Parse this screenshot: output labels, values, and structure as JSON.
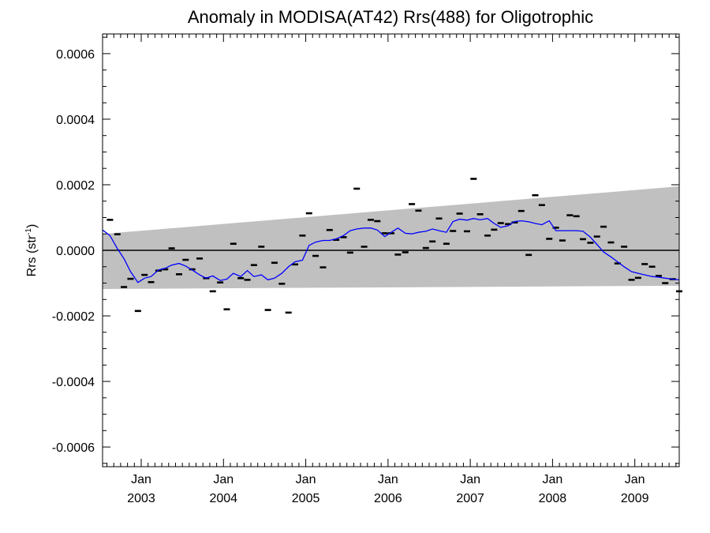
{
  "chart_data": {
    "type": "scatter",
    "title": "Anomaly in MODISA(AT42) Rrs(488) for Oligotrophic",
    "ylabel": "Rrs (str",
    "ylabel_sup": "-1",
    "ylabel_close": ")",
    "xlabel": "",
    "xlim": [
      2002.53,
      2009.54
    ],
    "ylim": [
      -0.00066,
      0.00066
    ],
    "grid": false,
    "legend": "none",
    "y_ticks": [
      {
        "value": 0.0006,
        "label": "0.0006"
      },
      {
        "value": 0.0004,
        "label": "0.0004"
      },
      {
        "value": 0.0002,
        "label": "0.0002"
      },
      {
        "value": 0.0,
        "label": "0.0000"
      },
      {
        "value": -0.0002,
        "label": "-0.0002"
      },
      {
        "value": -0.0004,
        "label": "-0.0004"
      },
      {
        "value": -0.0006,
        "label": "-0.0006"
      }
    ],
    "x_ticks": [
      {
        "value": 2003.0,
        "month": "Jan",
        "year": "2003"
      },
      {
        "value": 2004.0,
        "month": "Jan",
        "year": "2004"
      },
      {
        "value": 2005.0,
        "month": "Jan",
        "year": "2005"
      },
      {
        "value": 2006.0,
        "month": "Jan",
        "year": "2006"
      },
      {
        "value": 2007.0,
        "month": "Jan",
        "year": "2007"
      },
      {
        "value": 2008.0,
        "month": "Jan",
        "year": "2008"
      },
      {
        "value": 2009.0,
        "month": "Jan",
        "year": "2009"
      }
    ],
    "band": {
      "x": [
        2002.53,
        2009.54
      ],
      "lower": [
        -0.000118,
        -0.000108
      ],
      "upper": [
        5e-05,
        0.000195
      ],
      "color": "#c0c0c0"
    },
    "zero_line": 0.0,
    "series": [
      {
        "role": "monthly-anomaly",
        "marker": "dash",
        "color": "#000000",
        "x": [
          2002.62,
          2002.71,
          2002.79,
          2002.87,
          2002.96,
          2003.04,
          2003.12,
          2003.21,
          2003.29,
          2003.37,
          2003.46,
          2003.54,
          2003.62,
          2003.71,
          2003.79,
          2003.87,
          2003.96,
          2004.04,
          2004.12,
          2004.21,
          2004.29,
          2004.37,
          2004.46,
          2004.54,
          2004.62,
          2004.71,
          2004.79,
          2004.87,
          2004.96,
          2005.04,
          2005.12,
          2005.21,
          2005.29,
          2005.37,
          2005.46,
          2005.54,
          2005.62,
          2005.71,
          2005.79,
          2005.87,
          2005.96,
          2006.04,
          2006.12,
          2006.21,
          2006.29,
          2006.37,
          2006.46,
          2006.54,
          2006.62,
          2006.71,
          2006.79,
          2006.87,
          2006.96,
          2007.04,
          2007.12,
          2007.21,
          2007.29,
          2007.37,
          2007.46,
          2007.54,
          2007.62,
          2007.71,
          2007.79,
          2007.87,
          2007.96,
          2008.04,
          2008.12,
          2008.21,
          2008.29,
          2008.37,
          2008.46,
          2008.54,
          2008.62,
          2008.71,
          2008.79,
          2008.87,
          2008.96,
          2009.04,
          2009.12,
          2009.21,
          2009.29,
          2009.37,
          2009.46,
          2009.54
        ],
        "y": [
          9.3e-05,
          4.9e-05,
          -0.000112,
          -8.7e-05,
          -0.000185,
          -7.5e-05,
          -9.7e-05,
          -6.2e-05,
          -5.8e-05,
          6e-06,
          -7.3e-05,
          -2.9e-05,
          -5.8e-05,
          -2.5e-05,
          -8.5e-05,
          -0.000125,
          -9.8e-05,
          -0.00018,
          2e-05,
          -8.5e-05,
          -9e-05,
          -4.5e-05,
          1.1e-05,
          -0.000182,
          -3.8e-05,
          -0.000102,
          -0.00019,
          -4.3e-05,
          4.5e-05,
          0.000113,
          -1.7e-05,
          -5.2e-05,
          6.2e-05,
          3.2e-05,
          4e-05,
          -7e-06,
          0.000188,
          1.1e-05,
          9.3e-05,
          8.9e-05,
          5.2e-05,
          5.2e-05,
          -1.3e-05,
          -6e-06,
          0.000141,
          0.000121,
          7e-06,
          2.7e-05,
          9.7e-05,
          2e-05,
          5.9e-05,
          0.000112,
          5.8e-05,
          0.000218,
          0.00011,
          4.5e-05,
          6.3e-05,
          8.3e-05,
          8e-05,
          8.5e-05,
          0.00012,
          -1.4e-05,
          0.000168,
          0.000138,
          3.5e-05,
          6.9e-05,
          3e-05,
          0.000107,
          0.000104,
          3.4e-05,
          2.3e-05,
          4.2e-05,
          7.2e-05,
          2.4e-05,
          -4e-05,
          1.1e-05,
          -9e-05,
          -8.4e-05,
          -4.2e-05,
          -5e-05,
          -7.8e-05,
          -0.0001,
          -8.8e-05,
          -0.000125
        ]
      },
      {
        "role": "running-mean",
        "marker": "line",
        "color": "#0000ff",
        "x": [
          2002.53,
          2002.62,
          2002.71,
          2002.79,
          2002.87,
          2002.96,
          2003.04,
          2003.12,
          2003.21,
          2003.29,
          2003.37,
          2003.46,
          2003.54,
          2003.62,
          2003.71,
          2003.79,
          2003.87,
          2003.96,
          2004.04,
          2004.12,
          2004.21,
          2004.29,
          2004.37,
          2004.46,
          2004.54,
          2004.62,
          2004.71,
          2004.79,
          2004.87,
          2004.96,
          2005.04,
          2005.12,
          2005.21,
          2005.29,
          2005.37,
          2005.46,
          2005.54,
          2005.62,
          2005.71,
          2005.79,
          2005.87,
          2005.96,
          2006.04,
          2006.12,
          2006.21,
          2006.29,
          2006.37,
          2006.46,
          2006.54,
          2006.62,
          2006.71,
          2006.79,
          2006.87,
          2006.96,
          2007.04,
          2007.12,
          2007.21,
          2007.29,
          2007.37,
          2007.46,
          2007.54,
          2007.62,
          2007.71,
          2007.79,
          2007.87,
          2007.96,
          2008.04,
          2008.12,
          2008.21,
          2008.29,
          2008.37,
          2008.46,
          2008.54,
          2008.62,
          2008.71,
          2008.79,
          2008.87,
          2008.96,
          2009.04,
          2009.12,
          2009.21,
          2009.29,
          2009.37,
          2009.46,
          2009.54
        ],
        "y": [
          6.2e-05,
          4.5e-05,
          5e-06,
          -2.5e-05,
          -6.5e-05,
          -9.8e-05,
          -8.5e-05,
          -8e-05,
          -6e-05,
          -5.5e-05,
          -4.5e-05,
          -4e-05,
          -4.8e-05,
          -6e-05,
          -7.5e-05,
          -8.5e-05,
          -7.8e-05,
          -9.2e-05,
          -8.8e-05,
          -7e-05,
          -8e-05,
          -6.2e-05,
          -8e-05,
          -7.5e-05,
          -9e-05,
          -8.5e-05,
          -7e-05,
          -5e-05,
          -3.5e-05,
          -3e-05,
          1.5e-05,
          2.5e-05,
          3e-05,
          3e-05,
          3.5e-05,
          4.5e-05,
          6e-05,
          6.5e-05,
          6.8e-05,
          6.8e-05,
          6.2e-05,
          4.2e-05,
          5.5e-05,
          6.8e-05,
          5.2e-05,
          5e-05,
          5.5e-05,
          5.8e-05,
          6.5e-05,
          6e-05,
          5.5e-05,
          8.8e-05,
          9.5e-05,
          9.2e-05,
          9.7e-05,
          9.3e-05,
          9.7e-05,
          8.2e-05,
          7e-05,
          7.5e-05,
          8.8e-05,
          9e-05,
          8.7e-05,
          8.2e-05,
          7.8e-05,
          9e-05,
          6e-05,
          6e-05,
          6e-05,
          6e-05,
          5.8e-05,
          4e-05,
          1.8e-05,
          -5e-06,
          -2e-05,
          -3.5e-05,
          -5e-05,
          -6.5e-05,
          -7e-05,
          -7.5e-05,
          -8e-05,
          -8.2e-05,
          -8.5e-05,
          -8.8e-05,
          -9e-05
        ]
      }
    ]
  }
}
